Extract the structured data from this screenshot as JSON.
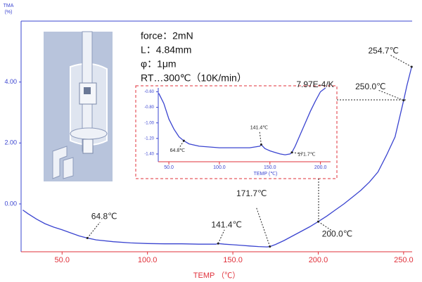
{
  "chart_data": [
    {
      "type": "line",
      "ylabel": [
        "TMA",
        "(%)"
      ],
      "xlabel": "TEMP （℃）",
      "xlim": [
        26,
        255
      ],
      "ylim": [
        -1.57,
        6.0
      ],
      "xticks": [
        {
          "value": 50,
          "label": "50.0"
        },
        {
          "value": 100,
          "label": "100.0"
        },
        {
          "value": 150,
          "label": "150.0"
        },
        {
          "value": 200,
          "label": "200.0"
        },
        {
          "value": 250,
          "label": "250.0"
        }
      ],
      "yticks": [
        {
          "value": 0,
          "label": "0.00"
        },
        {
          "value": 2,
          "label": "2.00"
        },
        {
          "value": 4,
          "label": "4.00"
        }
      ],
      "series": [
        {
          "color": "#3a44d0",
          "x": [
            27,
            30,
            35,
            40,
            45,
            50,
            55,
            60,
            64.8,
            70,
            80,
            90,
            100,
            110,
            120,
            130,
            140,
            141.4,
            145,
            150,
            155,
            160,
            165,
            170,
            171.7,
            175,
            180,
            185,
            190,
            195,
            200,
            205,
            210,
            215,
            220,
            225,
            230,
            235,
            240,
            245,
            250,
            252,
            254.7
          ],
          "values": [
            -0.2,
            -0.32,
            -0.5,
            -0.65,
            -0.76,
            -0.85,
            -0.95,
            -1.05,
            -1.12,
            -1.18,
            -1.24,
            -1.28,
            -1.3,
            -1.31,
            -1.31,
            -1.32,
            -1.32,
            -1.3,
            -1.32,
            -1.34,
            -1.36,
            -1.38,
            -1.4,
            -1.41,
            -1.4,
            -1.33,
            -1.2,
            -1.05,
            -0.9,
            -0.75,
            -0.58,
            -0.4,
            -0.2,
            0.0,
            0.22,
            0.45,
            0.72,
            1.05,
            1.6,
            2.2,
            3.4,
            3.9,
            4.5
          ]
        }
      ],
      "annotations": [
        {
          "x": 64.8,
          "label": "64.8℃"
        },
        {
          "x": 141.4,
          "label": "141.4℃"
        },
        {
          "x": 171.7,
          "label": "171.7℃"
        },
        {
          "x": 200.0,
          "label": "200.0℃"
        },
        {
          "x": 250.0,
          "label": "250.0℃"
        },
        {
          "x": 254.7,
          "label": "254.7℃"
        }
      ],
      "notes": [
        "force：2mN",
        "L：4.84mm",
        "φ：1μm",
        "RT…300℃（10K/min）"
      ],
      "slope_label": "7.97E-4/K"
    },
    {
      "type": "line",
      "xlabel": "TEMP (℃)",
      "xlim": [
        39.5,
        210
      ],
      "ylim": [
        -1.5,
        -0.55
      ],
      "xticks": [
        {
          "value": 50,
          "label": "50.0"
        },
        {
          "value": 100,
          "label": "100.0"
        },
        {
          "value": 150,
          "label": "150.0"
        },
        {
          "value": 200,
          "label": "200.0"
        }
      ],
      "yticks": [
        {
          "value": -0.6,
          "label": "-0.60"
        },
        {
          "value": -0.8,
          "label": "-0.80"
        },
        {
          "value": -1.0,
          "label": "-1.00"
        },
        {
          "value": -1.2,
          "label": "-1.20"
        },
        {
          "value": -1.4,
          "label": "-1.40"
        }
      ],
      "series": [
        {
          "color": "#3a44d0",
          "x": [
            40,
            45,
            50,
            55,
            60,
            64.8,
            70,
            80,
            90,
            100,
            110,
            120,
            130,
            140,
            141.4,
            145,
            150,
            155,
            160,
            165,
            170,
            171.7,
            175,
            180,
            185,
            190,
            195,
            200,
            205
          ],
          "values": [
            -0.62,
            -0.75,
            -0.95,
            -1.08,
            -1.18,
            -1.23,
            -1.27,
            -1.3,
            -1.31,
            -1.32,
            -1.32,
            -1.32,
            -1.32,
            -1.3,
            -1.28,
            -1.33,
            -1.36,
            -1.38,
            -1.4,
            -1.41,
            -1.4,
            -1.38,
            -1.3,
            -1.15,
            -1.0,
            -0.85,
            -0.72,
            -0.6,
            -0.55
          ]
        }
      ],
      "annotations": [
        {
          "x": 64.8,
          "label": "64.8℃"
        },
        {
          "x": 141.4,
          "label": "141.4℃"
        },
        {
          "x": 171.7,
          "label": "171.7℃"
        }
      ]
    }
  ]
}
